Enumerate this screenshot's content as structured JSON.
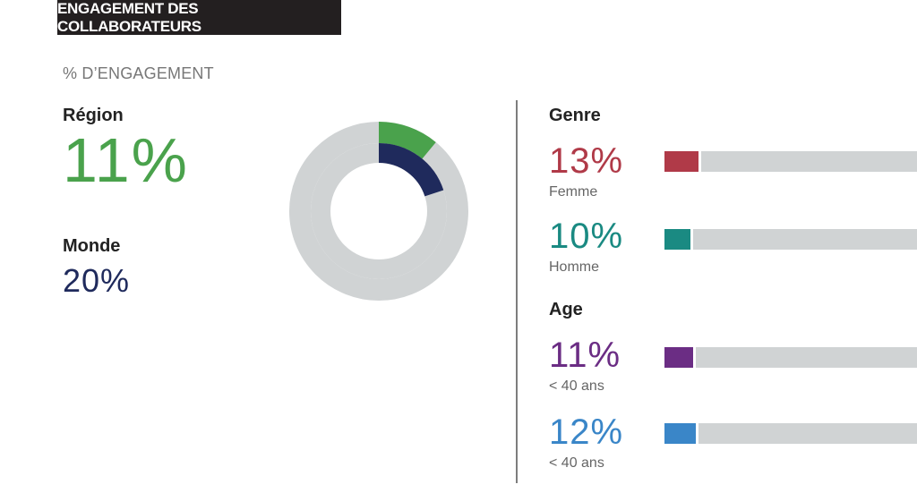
{
  "header": {
    "title": "ENGAGEMENT DES COLLABORATEURS",
    "subtitle": "% D’ENGAGEMENT"
  },
  "region": {
    "label": "Région",
    "value_text": "11%",
    "color": "#4aa24c"
  },
  "world": {
    "label": "Monde",
    "value_text": "20%",
    "color": "#1f2a5c"
  },
  "genre": {
    "label": "Genre",
    "items": [
      {
        "value_text": "13%",
        "label": "Femme",
        "color": "#b03a48"
      },
      {
        "value_text": "10%",
        "label": "Homme",
        "color": "#1a8a82"
      }
    ]
  },
  "age": {
    "label": "Age",
    "items": [
      {
        "value_text": "11%",
        "label": "< 40 ans",
        "color": "#6b2d84"
      },
      {
        "value_text": "12%",
        "label": "< 40 ans",
        "color": "#3a86c8"
      }
    ]
  },
  "chart_data": [
    {
      "type": "pie",
      "subtype": "concentric-donut",
      "series": [
        {
          "name": "Région",
          "value": 11,
          "color": "#4aa24c",
          "ring": "outer"
        },
        {
          "name": "Monde",
          "value": 20,
          "color": "#1f2a5c",
          "ring": "inner"
        }
      ],
      "max": 100,
      "track_color": "#d0d3d4"
    },
    {
      "type": "bar",
      "orientation": "horizontal",
      "categories": [
        "Femme",
        "Homme",
        "< 40 ans",
        "< 40 ans"
      ],
      "values": [
        13,
        10,
        11,
        12
      ],
      "colors": [
        "#b03a48",
        "#1a8a82",
        "#6b2d84",
        "#3a86c8"
      ],
      "groups": [
        "Genre",
        "Genre",
        "Age",
        "Age"
      ],
      "track_color": "#d0d3d4"
    }
  ]
}
